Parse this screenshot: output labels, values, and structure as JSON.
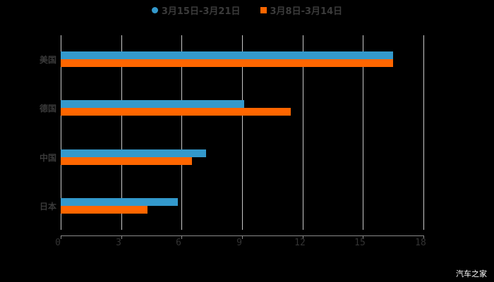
{
  "chart_data": {
    "type": "bar",
    "orientation": "horizontal",
    "title": "",
    "categories": [
      "美国",
      "德国",
      "中国",
      "日本"
    ],
    "series": [
      {
        "name": "3月15日-3月21日",
        "color": "#3399cc",
        "values": [
          16.5,
          9.1,
          7.2,
          5.8
        ]
      },
      {
        "name": "3月8日-3月14日",
        "color": "#ff6600",
        "values": [
          16.5,
          11.4,
          6.5,
          4.3
        ]
      }
    ],
    "xlabel": "",
    "ylabel": "",
    "xlim": [
      0,
      18
    ],
    "xticks": [
      "0",
      "3",
      "6",
      "9",
      "12",
      "15",
      "18"
    ],
    "grid": true,
    "legend_position": "top"
  },
  "legend": {
    "items": [
      {
        "label": "3月15日-3月21日",
        "color": "#3399cc",
        "shape": "circle"
      },
      {
        "label": "3月8日-3月14日",
        "color": "#ff6600",
        "shape": "square"
      }
    ]
  },
  "watermark": "汽车之家"
}
